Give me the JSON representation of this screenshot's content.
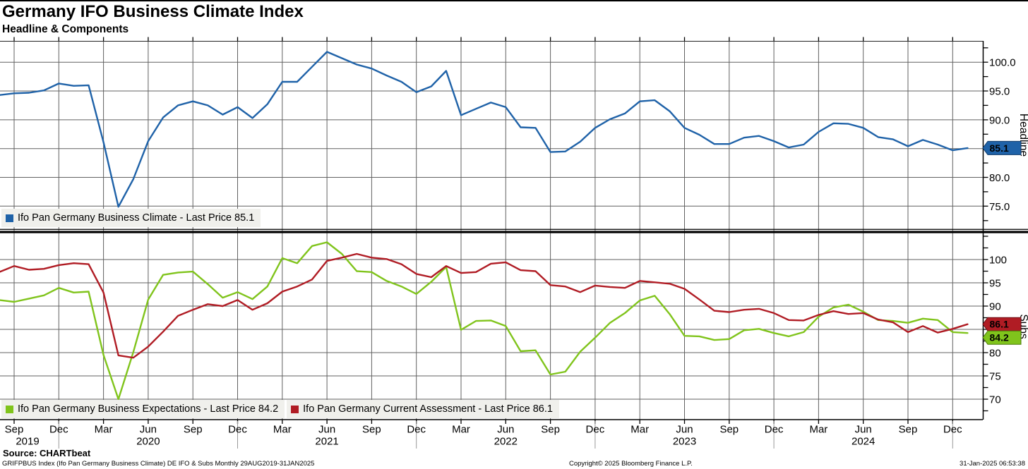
{
  "header": {
    "title": "Germany IFO Business Climate Index",
    "subtitle": "Headline & Components"
  },
  "colors": {
    "climate": "#1f62a8",
    "expectations": "#80c41c",
    "assessment": "#b01c24",
    "grid": "#616161",
    "axis": "#000000",
    "legend_bg": "#f0f0ec",
    "year_separator": "#999999"
  },
  "legend": {
    "climate": "Ifo Pan Germany Business Climate - Last Price 85.1",
    "expectations": "Ifo Pan Germany Business Expectations - Last Price 84.2",
    "assessment": "Ifo Pan Germany Current Assessment - Last Price 86.1"
  },
  "footer": {
    "source": "Source: CHARTbeat",
    "meta": "GRIFPBUS Index (Ifo Pan Germany Business Climate) DE IFO & Subs  Monthly 29AUG2019-31JAN2025",
    "copyright": "Copyright© 2025 Bloomberg Finance L.P.",
    "timestamp": "31-Jan-2025 06:53:38"
  },
  "chart_data": {
    "type": "line",
    "title": "Germany IFO Business Climate Index",
    "subtitle": "Headline & Components",
    "frequency": "monthly",
    "x_range": "29AUG2019-31JAN2025",
    "first_month": "Aug 2019",
    "last_month": "Jan 2025",
    "panels": [
      {
        "title": "Headline",
        "ylim": [
          71.0,
          103.7
        ],
        "gridlines": [
          75,
          80,
          85,
          90,
          95,
          100
        ],
        "yticks": [
          {
            "v": 100,
            "label": "100.0"
          },
          {
            "v": 95,
            "label": "95.0"
          },
          {
            "v": 90,
            "label": "90.0"
          },
          {
            "v": 80,
            "label": "80.0"
          },
          {
            "v": 75,
            "label": "75.0"
          }
        ],
        "series": [
          {
            "name": "Ifo Pan Germany Business Climate",
            "color": "#1f62a8",
            "last_price": 85.1,
            "tag": {
              "label": "85.1",
              "bg": "#1f62a8",
              "fg": "#ffffff",
              "stroke": "#123c6b"
            },
            "values": [
              94.3,
              94.6,
              94.7,
              95.1,
              96.3,
              95.9,
              96.0,
              86.1,
              74.9,
              79.7,
              86.3,
              90.4,
              92.5,
              93.2,
              92.5,
              90.9,
              92.2,
              90.3,
              92.7,
              96.6,
              96.6,
              99.2,
              101.8,
              100.7,
              99.6,
              98.9,
              97.7,
              96.6,
              94.8,
              95.8,
              98.5,
              90.8,
              91.9,
              93.0,
              92.2,
              88.7,
              88.6,
              84.4,
              84.5,
              86.2,
              88.6,
              90.1,
              91.1,
              93.2,
              93.4,
              91.5,
              88.6,
              87.4,
              85.8,
              85.8,
              86.9,
              87.2,
              86.3,
              85.2,
              85.7,
              87.9,
              89.4,
              89.3,
              88.6,
              87.0,
              86.6,
              85.4,
              86.5,
              85.7,
              84.7,
              85.1
            ]
          }
        ]
      },
      {
        "title": "Subs",
        "ylim": [
          65.6,
          105.6
        ],
        "gridlines": [
          70,
          75,
          80,
          85,
          90,
          95,
          100
        ],
        "yticks": [
          {
            "v": 100,
            "label": "100"
          },
          {
            "v": 95,
            "label": "95"
          },
          {
            "v": 90,
            "label": "90"
          },
          {
            "v": 80,
            "label": "80"
          },
          {
            "v": 75,
            "label": "75"
          },
          {
            "v": 70,
            "label": "70"
          }
        ],
        "series": [
          {
            "name": "Ifo Pan Germany Business Expectations",
            "color": "#80c41c",
            "last_price": 84.2,
            "tag": {
              "label": "84.2",
              "bg": "#80c41c",
              "fg": "#000000",
              "stroke": "#4c7a0a"
            },
            "values": [
              91.3,
              90.9,
              91.6,
              92.3,
              93.9,
              92.9,
              93.1,
              79.5,
              70.0,
              80.1,
              91.4,
              96.7,
              97.2,
              97.4,
              94.7,
              91.8,
              93.0,
              91.5,
              94.2,
              100.3,
              99.2,
              102.9,
              103.7,
              101.2,
              97.5,
              97.3,
              95.4,
              94.2,
              92.6,
              95.2,
              98.4,
              84.9,
              86.8,
              86.9,
              85.7,
              80.3,
              80.5,
              75.3,
              75.9,
              80.2,
              83.2,
              86.4,
              88.5,
              91.2,
              92.2,
              88.3,
              83.6,
              83.5,
              82.7,
              82.9,
              84.8,
              85.1,
              84.2,
              83.5,
              84.4,
              87.7,
              89.7,
              90.3,
              88.8,
              87.0,
              86.8,
              86.4,
              87.3,
              87.0,
              84.4,
              84.2
            ]
          },
          {
            "name": "Ifo Pan Germany Current Assessment",
            "color": "#b01c24",
            "last_price": 86.1,
            "tag": {
              "label": "86.1",
              "bg": "#b01c24",
              "fg": "#ffffff",
              "stroke": "#6d0d15"
            },
            "values": [
              97.3,
              98.6,
              97.8,
              98.0,
              98.8,
              99.2,
              99.0,
              92.9,
              79.4,
              78.9,
              81.3,
              84.5,
              87.9,
              89.2,
              90.4,
              90.0,
              91.3,
              89.2,
              90.6,
              93.1,
              94.2,
              95.7,
              99.7,
              100.4,
              101.2,
              100.4,
              100.1,
              99.0,
              96.9,
              96.2,
              98.6,
              97.1,
              97.3,
              99.1,
              99.4,
              97.7,
              97.5,
              94.5,
              94.2,
              93.0,
              94.4,
              94.1,
              93.9,
              95.4,
              95.1,
              94.8,
              93.7,
              91.4,
              89.0,
              88.7,
              89.2,
              89.4,
              88.5,
              87.0,
              86.9,
              88.1,
              88.9,
              88.3,
              88.5,
              87.1,
              86.5,
              84.4,
              85.7,
              84.3,
              85.1,
              86.1
            ]
          }
        ]
      }
    ],
    "x_ticks": [
      {
        "i": 1,
        "m": "Sep"
      },
      {
        "i": 4,
        "m": "Dec"
      },
      {
        "i": 7,
        "m": "Mar"
      },
      {
        "i": 10,
        "m": "Jun"
      },
      {
        "i": 13,
        "m": "Sep"
      },
      {
        "i": 16,
        "m": "Dec"
      },
      {
        "i": 19,
        "m": "Mar"
      },
      {
        "i": 22,
        "m": "Jun"
      },
      {
        "i": 25,
        "m": "Sep"
      },
      {
        "i": 28,
        "m": "Dec"
      },
      {
        "i": 31,
        "m": "Mar"
      },
      {
        "i": 34,
        "m": "Jun"
      },
      {
        "i": 37,
        "m": "Sep"
      },
      {
        "i": 40,
        "m": "Dec"
      },
      {
        "i": 43,
        "m": "Mar"
      },
      {
        "i": 46,
        "m": "Jun"
      },
      {
        "i": 49,
        "m": "Sep"
      },
      {
        "i": 52,
        "m": "Dec"
      },
      {
        "i": 55,
        "m": "Mar"
      },
      {
        "i": 58,
        "m": "Jun"
      },
      {
        "i": 61,
        "m": "Sep"
      },
      {
        "i": 64,
        "m": "Dec"
      }
    ],
    "years": [
      {
        "i": 1.9,
        "label": "2019"
      },
      {
        "i": 10,
        "label": "2020"
      },
      {
        "i": 22,
        "label": "2021"
      },
      {
        "i": 34,
        "label": "2022"
      },
      {
        "i": 46,
        "label": "2023"
      },
      {
        "i": 58,
        "label": "2024"
      }
    ],
    "year_separators": [
      4,
      16,
      28,
      40,
      52,
      64
    ]
  }
}
